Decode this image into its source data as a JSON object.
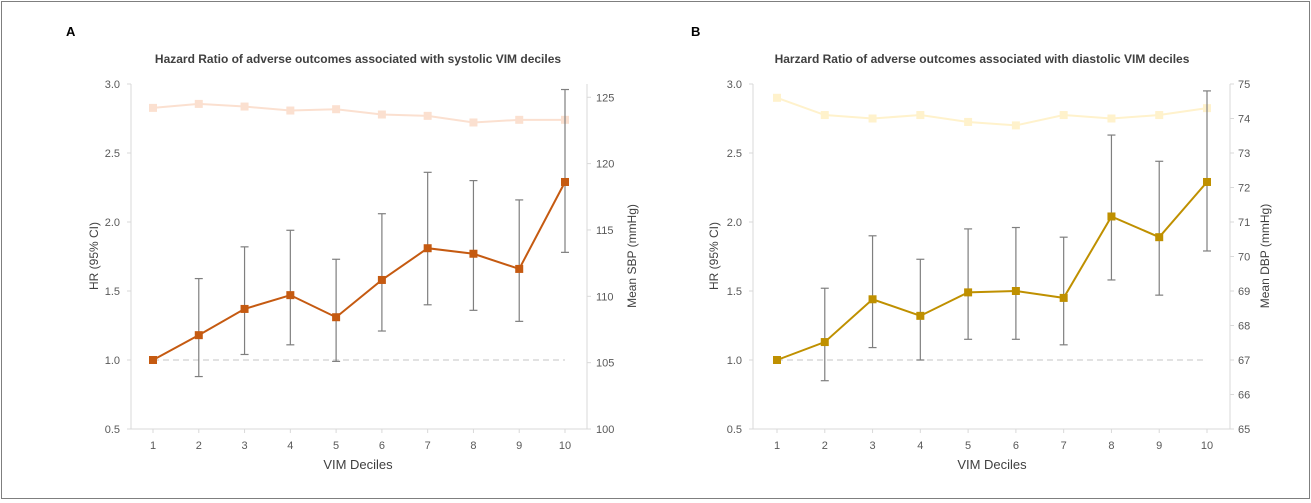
{
  "panels": [
    {
      "letter": "A",
      "title": "Hazard Ratio of adverse outcomes associated with systolic  VIM deciles",
      "xlabel": "VIM Deciles",
      "ylabel_left": "HR (95% CI)",
      "ylabel_right": "Mean SBP (mmHg)"
    },
    {
      "letter": "B",
      "title": "Harzard Ratio of adverse outcomes associated with diastolic VIM deciles",
      "xlabel": "VIM Deciles",
      "ylabel_left": "HR (95% CI)",
      "ylabel_right": "Mean DBP (mmHg)"
    }
  ],
  "chart_data": [
    {
      "type": "line",
      "title": "Hazard Ratio of adverse outcomes associated with systolic  VIM deciles",
      "xlabel": "VIM Deciles",
      "ylabel": "HR (95% CI)",
      "y2label": "Mean SBP (mmHg)",
      "categories": [
        "1",
        "2",
        "3",
        "4",
        "5",
        "6",
        "7",
        "8",
        "9",
        "10"
      ],
      "ylim": [
        0.5,
        3.0
      ],
      "yticks": [
        "0.5",
        "1.0",
        "1.5",
        "2.0",
        "2.5",
        "3.0"
      ],
      "y2lim": [
        100,
        126
      ],
      "y2ticks": [
        "100",
        "105",
        "110",
        "115",
        "120",
        "125"
      ],
      "reference_line": 1.0,
      "series": [
        {
          "axis": "left",
          "values": [
            1.0,
            1.18,
            1.37,
            1.47,
            1.31,
            1.58,
            1.81,
            1.77,
            1.66,
            2.29
          ],
          "ci_low": [
            null,
            0.88,
            1.04,
            1.11,
            0.99,
            1.21,
            1.4,
            1.36,
            1.28,
            1.78
          ],
          "ci_high": [
            null,
            1.59,
            1.82,
            1.94,
            1.73,
            2.06,
            2.36,
            2.3,
            2.16,
            2.96
          ],
          "color": "#c55a11"
        },
        {
          "axis": "right",
          "values": [
            124.2,
            124.5,
            124.3,
            124.0,
            124.1,
            123.7,
            123.6,
            123.1,
            123.3,
            123.3
          ],
          "color": "#fbe0d0"
        }
      ],
      "grid": false
    },
    {
      "type": "line",
      "title": "Harzard Ratio of adverse outcomes associated with diastolic VIM deciles",
      "xlabel": "VIM Deciles",
      "ylabel": "HR (95% CI)",
      "y2label": "Mean DBP (mmHg)",
      "categories": [
        "1",
        "2",
        "3",
        "4",
        "5",
        "6",
        "7",
        "8",
        "9",
        "10"
      ],
      "ylim": [
        0.5,
        3.0
      ],
      "yticks": [
        "0.5",
        "1.0",
        "1.5",
        "2.0",
        "2.5",
        "3.0"
      ],
      "y2lim": [
        65,
        75
      ],
      "y2ticks": [
        "65",
        "66",
        "67",
        "68",
        "69",
        "70",
        "71",
        "72",
        "73",
        "74",
        "75"
      ],
      "reference_line": 1.0,
      "series": [
        {
          "axis": "left",
          "values": [
            1.0,
            1.13,
            1.44,
            1.32,
            1.49,
            1.5,
            1.45,
            2.04,
            1.89,
            2.29
          ],
          "ci_low": [
            null,
            0.85,
            1.09,
            1.0,
            1.15,
            1.15,
            1.11,
            1.58,
            1.47,
            1.79
          ],
          "ci_high": [
            null,
            1.52,
            1.9,
            1.73,
            1.95,
            1.96,
            1.89,
            2.63,
            2.44,
            2.95
          ],
          "color": "#bf9000"
        },
        {
          "axis": "right",
          "values": [
            74.6,
            74.1,
            74.0,
            74.1,
            73.9,
            73.8,
            74.1,
            74.0,
            74.1,
            74.3
          ],
          "color": "#fff2cc"
        }
      ],
      "grid": false
    }
  ]
}
